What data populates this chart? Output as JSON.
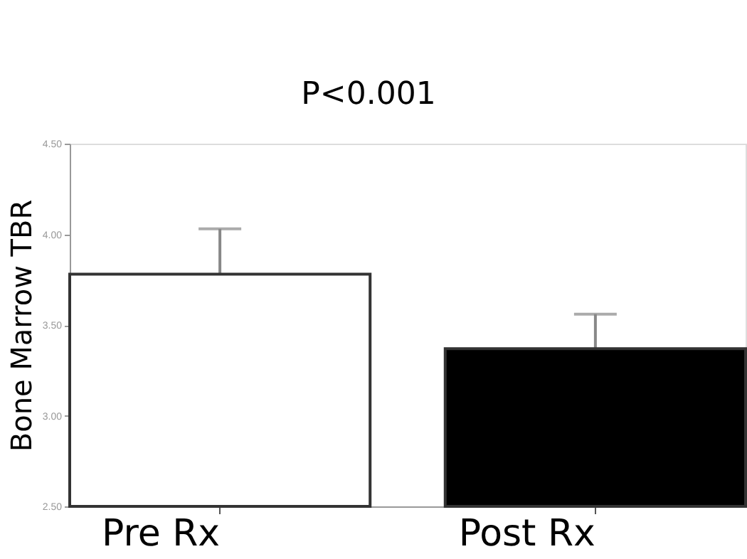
{
  "chart_data": {
    "type": "bar",
    "ylabel": "Bone Marrow TBR",
    "categories": [
      "Pre Rx",
      "Post Rx"
    ],
    "values": [
      3.78,
      3.37
    ],
    "colors": [
      "#ffffff",
      "#000000"
    ],
    "errors": [
      0.25,
      0.19
    ],
    "ylim": [
      2.5,
      4.5
    ],
    "yticks": [
      {
        "value": 2.5,
        "label": "2.50"
      },
      {
        "value": 3.0,
        "label": "3.00"
      },
      {
        "value": 3.5,
        "label": "3.50"
      },
      {
        "value": 4.0,
        "label": "4.00"
      },
      {
        "value": 4.5,
        "label": "4.50"
      }
    ],
    "grid": false,
    "annotations": [
      "P<0.001"
    ]
  }
}
